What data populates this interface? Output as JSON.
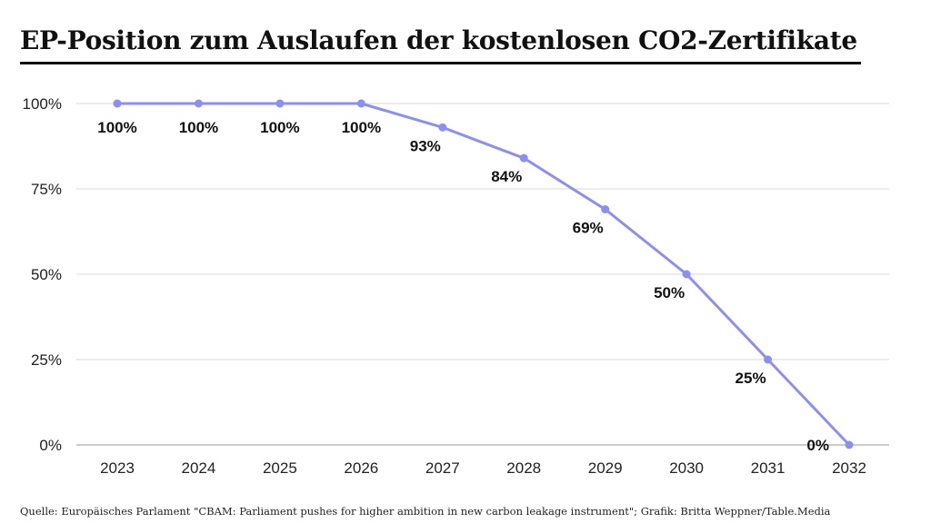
{
  "title": "EP-Position zum Auslaufen der kostenlosen CO2-Zertifikate",
  "source": "Quelle: Europäisches Parlament \"CBAM: Parliament pushes for higher ambition in new carbon leakage instrument\"; Grafik: Britta Weppner/Table.Media",
  "colors": {
    "line": "#8b8ff5",
    "grid": "#d9d9d9",
    "text": "#111111"
  },
  "chart_data": {
    "type": "line",
    "x": [
      "2023",
      "2024",
      "2025",
      "2026",
      "2027",
      "2028",
      "2029",
      "2030",
      "2031",
      "2032"
    ],
    "values": [
      100,
      100,
      100,
      100,
      93,
      84,
      69,
      50,
      25,
      0
    ],
    "data_labels": [
      "100%",
      "100%",
      "100%",
      "100%",
      "93%",
      "84%",
      "69%",
      "50%",
      "25%",
      "0%"
    ],
    "y_ticks": [
      0,
      25,
      50,
      75,
      100
    ],
    "y_tick_labels": [
      "0%",
      "25%",
      "50%",
      "75%",
      "100%"
    ],
    "ylim": [
      0,
      100
    ],
    "grid": true,
    "xlabel": "",
    "ylabel": ""
  }
}
